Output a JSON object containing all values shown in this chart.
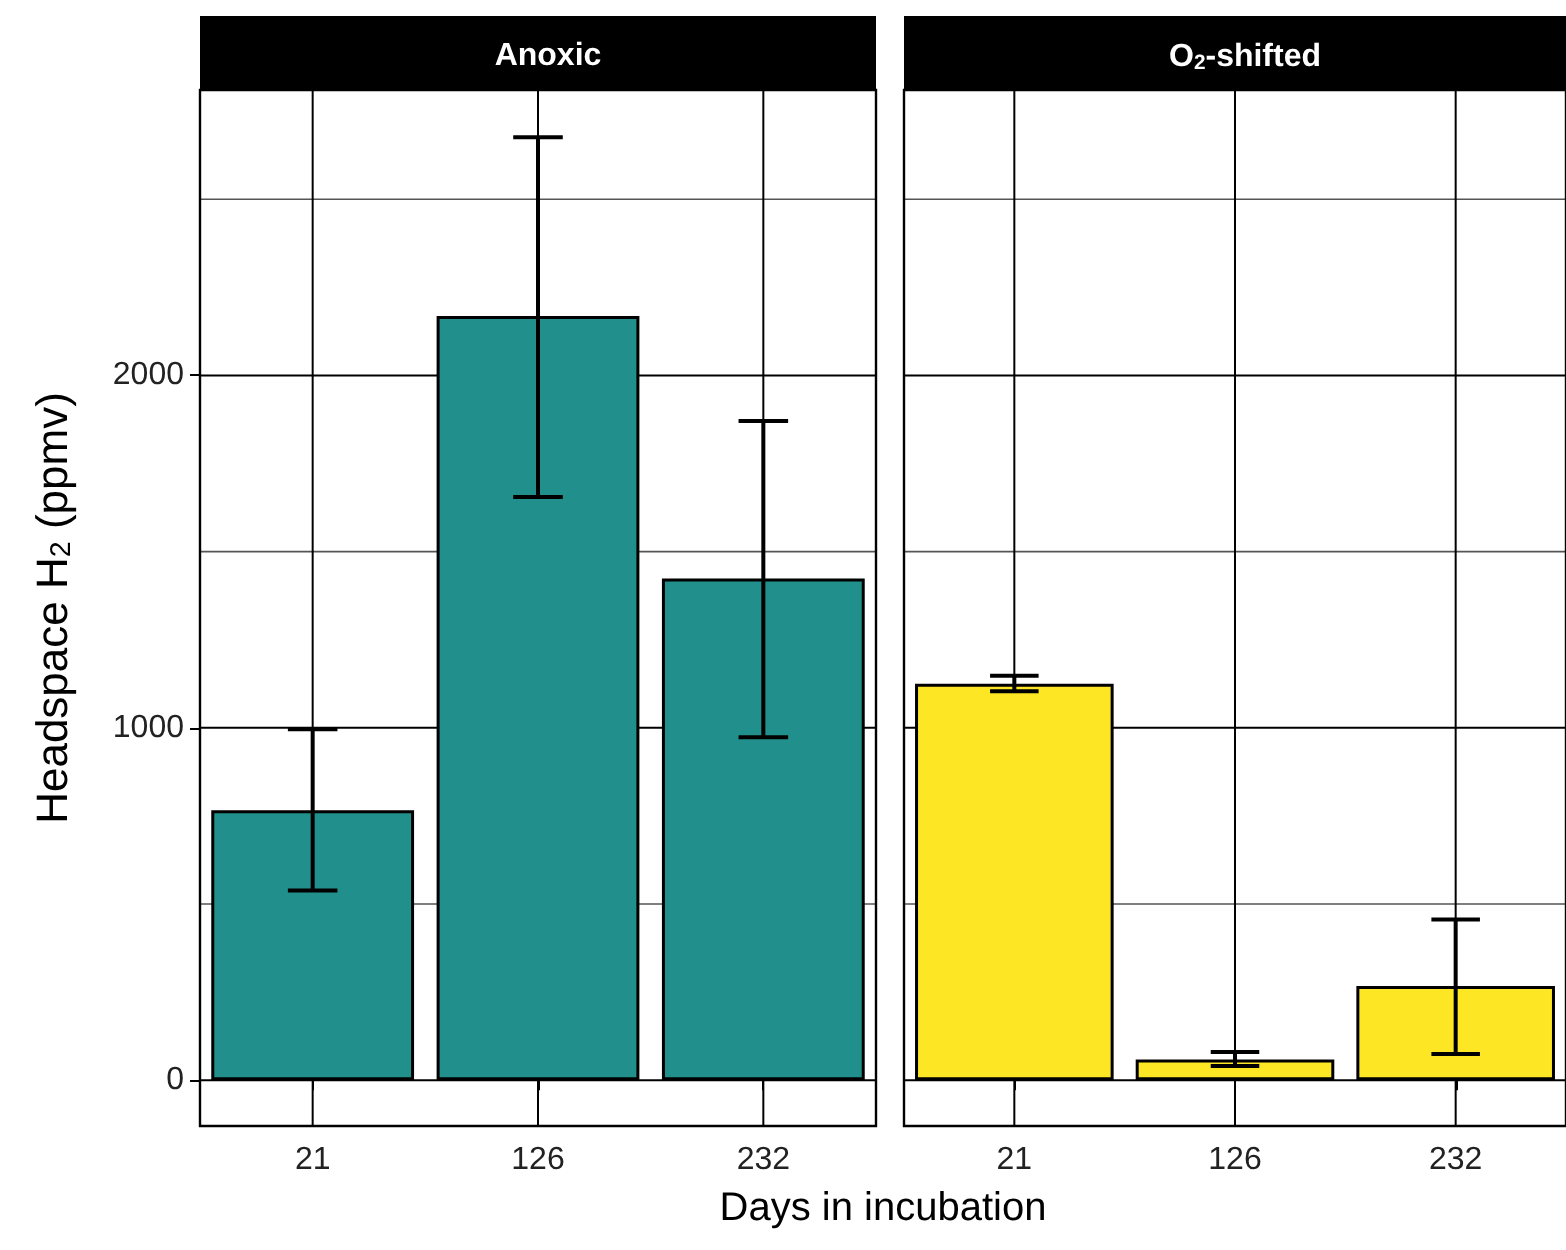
{
  "chart_data": [
    {
      "type": "bar",
      "title": "Anoxic",
      "xlabel": "Days in incubation",
      "ylabel": "Headspace H$_{2}$ (ppmv)",
      "categories": [
        "21",
        "126",
        "232"
      ],
      "values": [
        766,
        2169,
        1424
      ],
      "color": "#21908c",
      "errors": [
        [
          538,
          996
        ],
        [
          1655,
          2676
        ],
        [
          973,
          1871
        ]
      ],
      "ylim": [
        -130,
        2810
      ],
      "yticks": [
        0,
        {
          "value": 500,
          "label": null
        },
        1000,
        {
          "value": 1500,
          "label": null
        },
        2000,
        {
          "value": 2500,
          "label": null
        }
      ],
      "grid": true
    },
    {
      "type": "bar",
      "title": "O$_{2}$-shifted",
      "categories": [
        "21",
        "126",
        "232"
      ],
      "values": [
        1125,
        59,
        267
      ],
      "color": "#fde725",
      "errors": [
        [
          1104,
          1148
        ],
        [
          40,
          80
        ],
        [
          74,
          456
        ]
      ],
      "ylim": [
        -130,
        2810
      ],
      "yticks": [
        0,
        {
          "value": 500,
          "label": null
        },
        1000,
        {
          "value": 1500,
          "label": null
        },
        2000,
        {
          "value": 2500,
          "label": null
        }
      ],
      "grid": true,
      "tick_labels": "x"
    }
  ]
}
